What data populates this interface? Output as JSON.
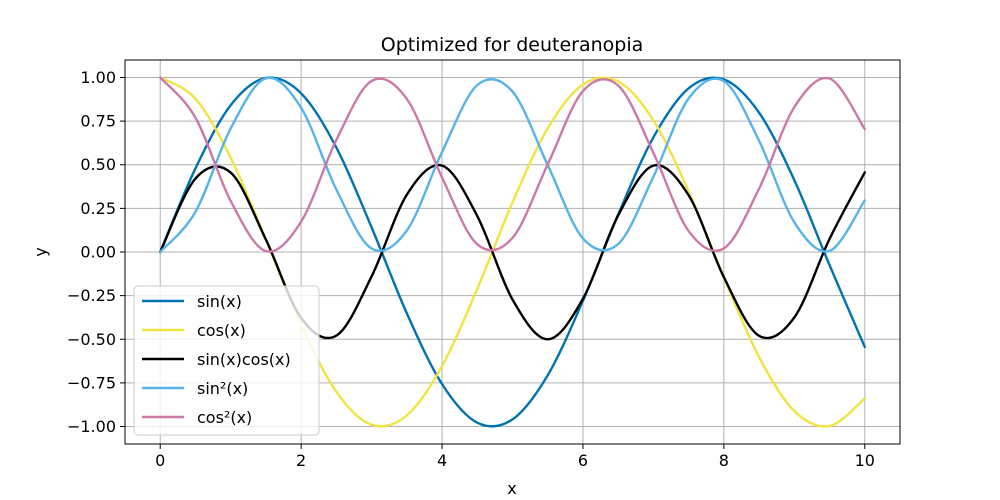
{
  "chart_data": {
    "type": "line",
    "title": "Optimized for deuteranopia",
    "xlabel": "x",
    "ylabel": "y",
    "xlim": [
      -0.5,
      10.5
    ],
    "ylim": [
      -1.1,
      1.1
    ],
    "x_ticks": [
      0,
      2,
      4,
      6,
      8,
      10
    ],
    "x_tick_labels": [
      "0",
      "2",
      "4",
      "6",
      "8",
      "10"
    ],
    "y_ticks": [
      -1.0,
      -0.75,
      -0.5,
      -0.25,
      0.0,
      0.25,
      0.5,
      0.75,
      1.0
    ],
    "y_tick_labels": [
      "−1.00",
      "−0.75",
      "−0.50",
      "−0.25",
      "0.00",
      "0.25",
      "0.50",
      "0.75",
      "1.00"
    ],
    "grid": true,
    "legend_position": "lower-left",
    "x": [
      0.0,
      0.5,
      1.0,
      1.5,
      2.0,
      2.5,
      3.0,
      3.5,
      4.0,
      4.5,
      5.0,
      5.5,
      6.0,
      6.5,
      7.0,
      7.5,
      8.0,
      8.5,
      9.0,
      9.5,
      10.0
    ],
    "series": [
      {
        "name": "sin(x)",
        "color": "#0072b2",
        "values": [
          0.0,
          0.479,
          0.841,
          0.997,
          0.909,
          0.598,
          0.141,
          -0.351,
          -0.757,
          -0.978,
          -0.959,
          -0.706,
          -0.279,
          0.215,
          0.657,
          0.938,
          0.989,
          0.798,
          0.412,
          -0.075,
          -0.544
        ]
      },
      {
        "name": "cos(x)",
        "color": "#f0e442",
        "values": [
          1.0,
          0.878,
          0.54,
          0.071,
          -0.416,
          -0.801,
          -0.99,
          -0.936,
          -0.654,
          -0.211,
          0.284,
          0.709,
          0.96,
          0.977,
          0.754,
          0.347,
          -0.146,
          -0.602,
          -0.911,
          -0.997,
          -0.839
        ]
      },
      {
        "name": "sin(x)cos(x)",
        "color": "#000000",
        "values": [
          0.0,
          0.421,
          0.455,
          0.071,
          -0.378,
          -0.479,
          -0.14,
          0.328,
          0.495,
          0.206,
          -0.272,
          -0.5,
          -0.268,
          0.21,
          0.495,
          0.325,
          -0.144,
          -0.48,
          -0.375,
          0.075,
          0.456
        ]
      },
      {
        "name": "sin²(x)",
        "color": "#56b4e9",
        "values": [
          0.0,
          0.23,
          0.708,
          0.995,
          0.826,
          0.358,
          0.02,
          0.123,
          0.573,
          0.956,
          0.919,
          0.498,
          0.078,
          0.046,
          0.432,
          0.88,
          0.979,
          0.637,
          0.17,
          0.006,
          0.296
        ]
      },
      {
        "name": "cos²(x)",
        "color": "#cc79a7",
        "values": [
          1.0,
          0.77,
          0.292,
          0.005,
          0.174,
          0.642,
          0.98,
          0.877,
          0.427,
          0.044,
          0.081,
          0.502,
          0.922,
          0.954,
          0.568,
          0.12,
          0.021,
          0.363,
          0.83,
          0.994,
          0.704
        ]
      }
    ]
  }
}
